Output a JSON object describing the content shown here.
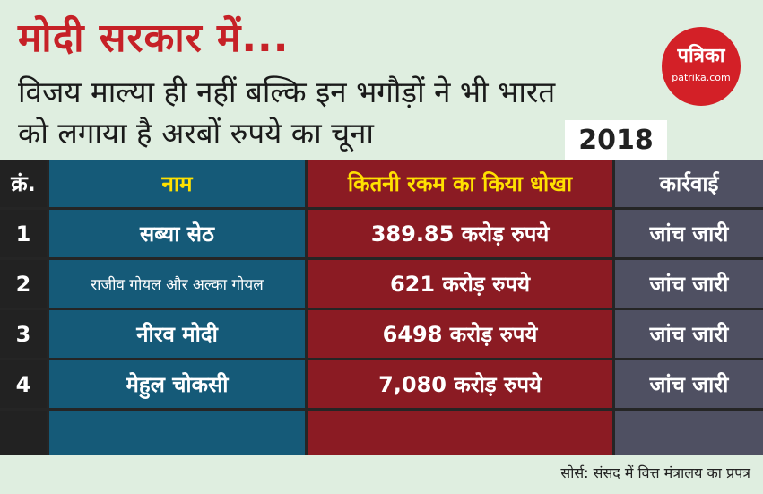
{
  "title": "मोदी सरकार में...",
  "subtitle": "विजय माल्या ही नहीं बल्कि इन भगौड़ों ने भी भारत को लगाया है अरबों रुपये का चूना",
  "logo": {
    "name": "पत्रिका",
    "url": "patrika.com"
  },
  "year": "2018",
  "table": {
    "headers": [
      "क्रं.",
      "नाम",
      "कितनी रकम का किया धोखा",
      "कार्रवाई"
    ],
    "rows": [
      {
        "no": "1",
        "name": "सब्या सेठ",
        "amount": "389.85 करोड़ रुपये",
        "action": "जांच जारी"
      },
      {
        "no": "2",
        "name": "राजीव गोयल और अल्का गोयल",
        "amount": "621 करोड़ रुपये",
        "action": "जांच जारी"
      },
      {
        "no": "3",
        "name": "नीरव मोदी",
        "amount": "6498 करोड़ रुपये",
        "action": "जांच जारी"
      },
      {
        "no": "4",
        "name": "मेहुल चोकसी",
        "amount": "7,080 करोड़ रुपये",
        "action": "जांच जारी"
      }
    ]
  },
  "source": "सोर्स: संसद में वित्त मंत्रालय का प्रपत्र",
  "colors": {
    "title": "#c62127",
    "name_col": "#155a78",
    "amount_col": "#8b1b23",
    "action_col": "#4f5062",
    "header_text": "#ffe100"
  }
}
